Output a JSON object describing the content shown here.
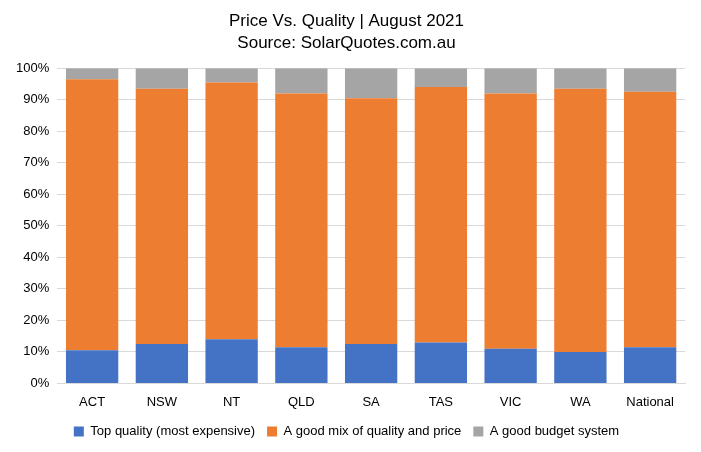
{
  "chart_data": {
    "type": "bar",
    "title": "Price Vs. Quality | August 2021",
    "subtitle": "Source: SolarQuotes.com.au",
    "categories": [
      "ACT",
      "NSW",
      "NT",
      "QLD",
      "SA",
      "TAS",
      "VIC",
      "WA",
      "National"
    ],
    "series": [
      {
        "name": "Top quality (most expensive)",
        "color": "#4472c4",
        "values": [
          10.5,
          12.5,
          14,
          11.5,
          12.5,
          13,
          11,
          10,
          11.5
        ]
      },
      {
        "name": "A good mix of quality and price",
        "color": "#ed7d31",
        "values": [
          86,
          81,
          81.5,
          80.5,
          78,
          81,
          81,
          83.5,
          81
        ]
      },
      {
        "name": "A good budget system",
        "color": "#a5a5a5",
        "values": [
          3.5,
          6.5,
          4.5,
          8,
          9.5,
          6,
          8,
          6.5,
          7.5
        ]
      }
    ],
    "stacked": true,
    "ylim": [
      0,
      100
    ],
    "yticks": [
      {
        "value": 0,
        "label": "0%"
      },
      {
        "value": 10,
        "label": "10%"
      },
      {
        "value": 20,
        "label": "20%"
      },
      {
        "value": 30,
        "label": "30%"
      },
      {
        "value": 40,
        "label": "40%"
      },
      {
        "value": 50,
        "label": "50%"
      },
      {
        "value": 60,
        "label": "60%"
      },
      {
        "value": 70,
        "label": "70%"
      },
      {
        "value": 80,
        "label": "80%"
      },
      {
        "value": 90,
        "label": "90%"
      },
      {
        "value": 100,
        "label": "100%"
      }
    ],
    "grid": true,
    "legend": "bottom"
  }
}
